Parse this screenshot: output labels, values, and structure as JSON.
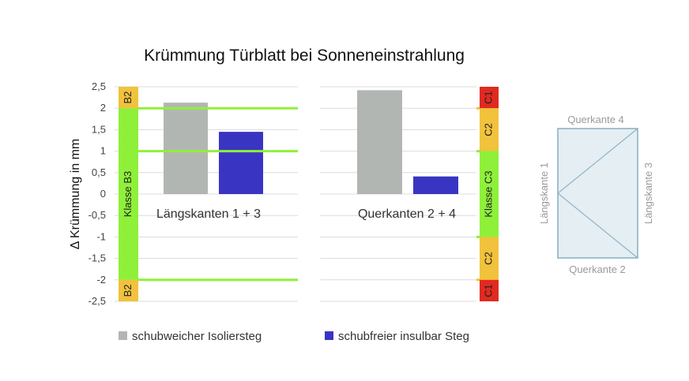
{
  "chart_data": {
    "type": "bar",
    "title": "Krümmung Türblatt bei Sonneneinstrahlung",
    "xlabel": "",
    "ylabel": "Δ Krümmung in mm",
    "ylim": [
      -2.5,
      2.5
    ],
    "yticks": [
      2.5,
      2,
      1.5,
      1,
      0.5,
      0,
      -0.5,
      -1,
      -1.5,
      -2,
      -2.5
    ],
    "ytick_labels": [
      "2,5",
      "2",
      "1,5",
      "1",
      "0,5",
      "0",
      "-0,5",
      "-1",
      "-1,5",
      "-2",
      "-2,5"
    ],
    "grid": true,
    "legend_position": "bottom",
    "categories": [
      "Längskanten 1 + 3",
      "Querkanten 2 + 4"
    ],
    "series": [
      {
        "name": "schubweicher Isoliersteg",
        "color": "#b2b6b3",
        "values": [
          2.13,
          2.42
        ]
      },
      {
        "name": "schubfreier insulbar Steg",
        "color": "#3a34c3",
        "values": [
          1.45,
          0.41
        ]
      }
    ],
    "class_bands": [
      {
        "panel": "Längskanten 1 + 3",
        "segments": [
          {
            "label": "B2",
            "from": 2,
            "to": 2.5,
            "color": "#f1c23c"
          },
          {
            "label": "Klasse B3",
            "from": -2,
            "to": 2,
            "color": "#8ff03a"
          },
          {
            "label": "B2",
            "from": -2.5,
            "to": -2,
            "color": "#f1c23c"
          }
        ],
        "limit_lines": [
          {
            "value": 2,
            "color": "#8ff03a"
          },
          {
            "value": 1,
            "color": "#8ff03a"
          },
          {
            "value": -2,
            "color": "#8ff03a"
          }
        ]
      },
      {
        "panel": "Querkanten 2 + 4",
        "segments": [
          {
            "label": "C1",
            "from": 2,
            "to": 2.5,
            "color": "#e02a20"
          },
          {
            "label": "C2",
            "from": 1,
            "to": 2,
            "color": "#f1c23c"
          },
          {
            "label": "Klasse C3",
            "from": -1,
            "to": 1,
            "color": "#8ff03a"
          },
          {
            "label": "C2",
            "from": -2,
            "to": -1,
            "color": "#f1c23c"
          },
          {
            "label": "C1",
            "from": -2.5,
            "to": -2,
            "color": "#e02a20"
          }
        ],
        "limit_lines": [
          {
            "value": 2,
            "color": "#f1c23c"
          },
          {
            "value": 1,
            "color": "#8ff03a"
          },
          {
            "value": -1,
            "color": "#8ff03a"
          },
          {
            "value": -2,
            "color": "#f1c23c"
          }
        ]
      }
    ]
  },
  "diagram": {
    "edge_top": "Querkante 4",
    "edge_bottom": "Querkante 2",
    "edge_left": "Längskante 1",
    "edge_right": "Längskante 3"
  },
  "colors": {
    "gridline": "#dcdcdc",
    "axis_text": "#444444",
    "diagram_fill": "#e4eef3",
    "diagram_stroke": "#8fb2c6",
    "diagram_text": "#9a9a9a"
  }
}
